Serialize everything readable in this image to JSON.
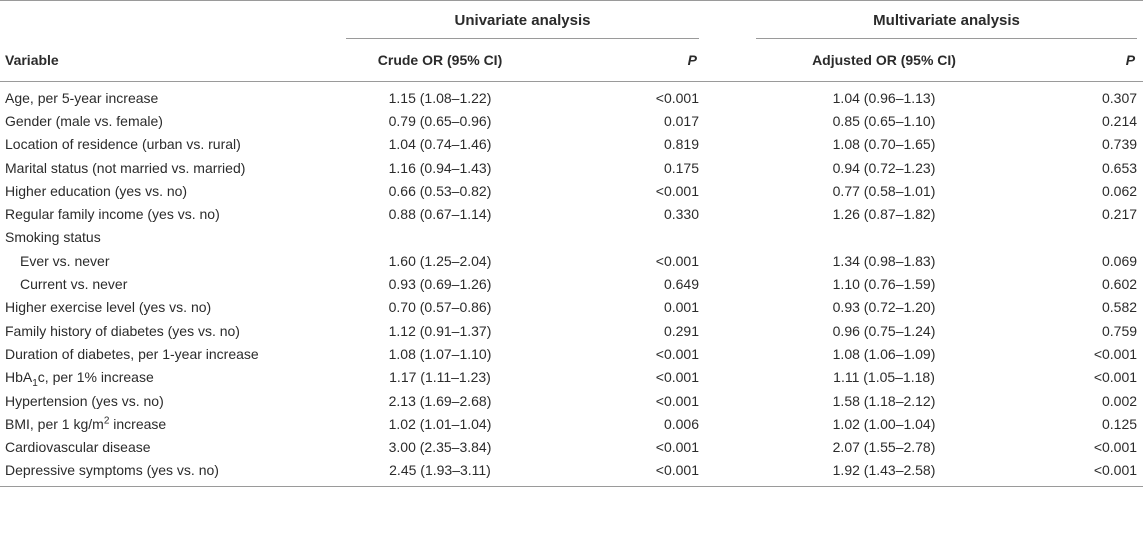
{
  "table": {
    "group_headers": {
      "univariate": "Univariate analysis",
      "multivariate": "Multivariate analysis"
    },
    "column_headers": {
      "variable": "Variable",
      "crude_or": "Crude OR (95% CI)",
      "p1": "P",
      "adjusted_or": "Adjusted OR (95% CI)",
      "p2": "P"
    },
    "rows": [
      {
        "variable": "Age, per 5-year increase",
        "crude": "1.15 (1.08–1.22)",
        "p1": "<0.001",
        "adjusted": "1.04 (0.96–1.13)",
        "p2": "0.307"
      },
      {
        "variable": "Gender (male vs. female)",
        "crude": "0.79 (0.65–0.96)",
        "p1": "0.017",
        "adjusted": "0.85 (0.65–1.10)",
        "p2": "0.214"
      },
      {
        "variable": "Location of residence (urban vs. rural)",
        "crude": "1.04 (0.74–1.46)",
        "p1": "0.819",
        "adjusted": "1.08 (0.70–1.65)",
        "p2": "0.739"
      },
      {
        "variable": "Marital status (not married vs. married)",
        "crude": "1.16 (0.94–1.43)",
        "p1": "0.175",
        "adjusted": "0.94 (0.72–1.23)",
        "p2": "0.653"
      },
      {
        "variable": "Higher education (yes vs. no)",
        "crude": "0.66 (0.53–0.82)",
        "p1": "<0.001",
        "adjusted": "0.77 (0.58–1.01)",
        "p2": "0.062"
      },
      {
        "variable": "Regular family income (yes vs. no)",
        "crude": "0.88 (0.67–1.14)",
        "p1": "0.330",
        "adjusted": "1.26 (0.87–1.82)",
        "p2": "0.217"
      },
      {
        "variable": "Smoking status",
        "crude": "",
        "p1": "",
        "adjusted": "",
        "p2": ""
      },
      {
        "variable": "Ever vs. never",
        "crude": "1.60 (1.25–2.04)",
        "p1": "<0.001",
        "adjusted": "1.34 (0.98–1.83)",
        "p2": "0.069"
      },
      {
        "variable": "Current vs. never",
        "crude": "0.93 (0.69–1.26)",
        "p1": "0.649",
        "adjusted": "1.10 (0.76–1.59)",
        "p2": "0.602"
      },
      {
        "variable": "Higher exercise level (yes vs. no)",
        "crude": "0.70 (0.57–0.86)",
        "p1": "0.001",
        "adjusted": "0.93 (0.72–1.20)",
        "p2": "0.582"
      },
      {
        "variable": "Family history of diabetes (yes vs. no)",
        "crude": "1.12 (0.91–1.37)",
        "p1": "0.291",
        "adjusted": "0.96 (0.75–1.24)",
        "p2": "0.759"
      },
      {
        "variable": "Duration of diabetes, per 1-year increase",
        "crude": "1.08 (1.07–1.10)",
        "p1": "<0.001",
        "adjusted": "1.08 (1.06–1.09)",
        "p2": "<0.001"
      },
      {
        "variable_pre": "HbA",
        "variable_sub": "1",
        "variable_post": "c, per 1% increase",
        "crude": "1.17 (1.11–1.23)",
        "p1": "<0.001",
        "adjusted": "1.11 (1.05–1.18)",
        "p2": "<0.001"
      },
      {
        "variable": "Hypertension (yes vs. no)",
        "crude": "2.13 (1.69–2.68)",
        "p1": "<0.001",
        "adjusted": "1.58 (1.18–2.12)",
        "p2": "0.002"
      },
      {
        "variable_pre": "BMI, per 1 kg/m",
        "variable_sup": "2",
        "variable_post": " increase",
        "crude": "1.02 (1.01–1.04)",
        "p1": "0.006",
        "adjusted": "1.02 (1.00–1.04)",
        "p2": "0.125"
      },
      {
        "variable": "Cardiovascular disease",
        "crude": "3.00 (2.35–3.84)",
        "p1": "<0.001",
        "adjusted": "2.07 (1.55–2.78)",
        "p2": "<0.001"
      },
      {
        "variable": "Depressive symptoms (yes vs. no)",
        "crude": "2.45 (1.93–3.11)",
        "p1": "<0.001",
        "adjusted": "1.92 (1.43–2.58)",
        "p2": "<0.001"
      }
    ]
  }
}
